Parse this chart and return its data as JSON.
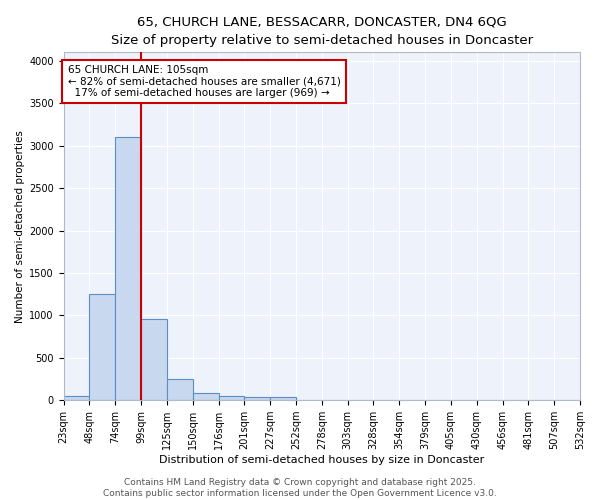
{
  "title1": "65, CHURCH LANE, BESSACARR, DONCASTER, DN4 6QG",
  "title2": "Size of property relative to semi-detached houses in Doncaster",
  "xlabel": "Distribution of semi-detached houses by size in Doncaster",
  "ylabel": "Number of semi-detached properties",
  "bar_values": [
    55,
    1250,
    3100,
    960,
    250,
    80,
    50,
    40,
    40,
    0,
    0,
    0,
    0,
    0,
    0,
    0,
    0,
    0,
    0,
    0
  ],
  "categories": [
    "23sqm",
    "48sqm",
    "74sqm",
    "99sqm",
    "125sqm",
    "150sqm",
    "176sqm",
    "201sqm",
    "227sqm",
    "252sqm",
    "278sqm",
    "303sqm",
    "328sqm",
    "354sqm",
    "379sqm",
    "405sqm",
    "430sqm",
    "456sqm",
    "481sqm",
    "507sqm",
    "532sqm"
  ],
  "bar_color": "#c8d8ee",
  "bar_edge_color": "#5b8ec4",
  "vline_x": 3,
  "vline_color": "#cc0000",
  "annotation_text": "65 CHURCH LANE: 105sqm\n← 82% of semi-detached houses are smaller (4,671)\n  17% of semi-detached houses are larger (969) →",
  "annotation_box_color": "#ffffff",
  "annotation_box_edge": "#cc0000",
  "ylim": [
    0,
    4100
  ],
  "yticks": [
    0,
    500,
    1000,
    1500,
    2000,
    2500,
    3000,
    3500,
    4000
  ],
  "background_color": "#eef2fa",
  "grid_color": "#ffffff",
  "footer_text": "Contains HM Land Registry data © Crown copyright and database right 2025.\nContains public sector information licensed under the Open Government Licence v3.0.",
  "title1_fontsize": 9.5,
  "title2_fontsize": 8.5,
  "xlabel_fontsize": 8,
  "ylabel_fontsize": 7.5,
  "tick_fontsize": 7,
  "footer_fontsize": 6.5,
  "annot_fontsize": 7.5
}
